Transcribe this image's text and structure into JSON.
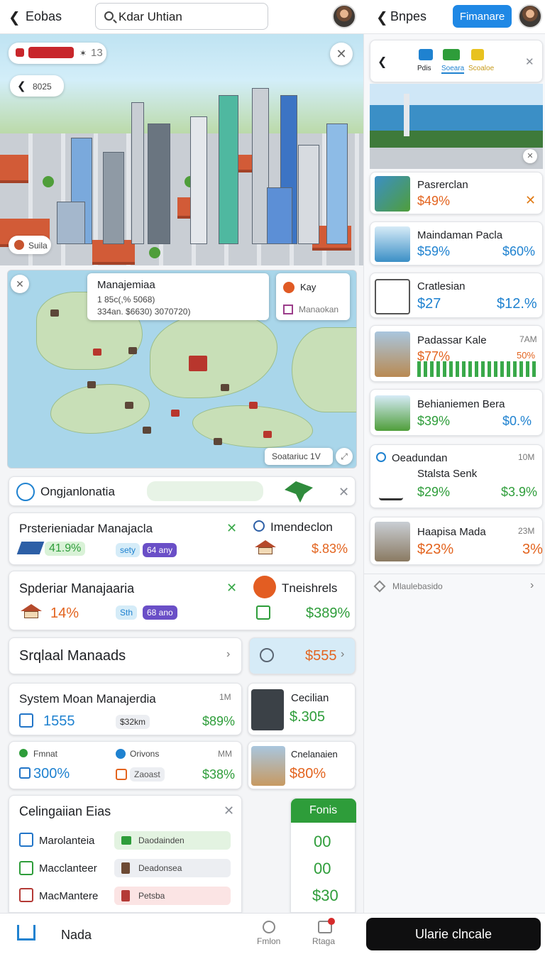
{
  "topbar": {
    "left_title": "Eobas",
    "search_value": "Kdar Uhtian",
    "right_title": "Bnpes",
    "primary_button": "Fimanare"
  },
  "city_map": {
    "badge_count": "13",
    "back_label": "8025",
    "scale_label": "Suila"
  },
  "region_map": {
    "popup_title": "Manajemiaa",
    "popup_line1": "1 85c(,% 5068)",
    "popup_line2": "334an. $6630) 3070720)",
    "key_title": "Kay",
    "key_sub": "Manaokan",
    "scale_button": "Soatariuc 1V"
  },
  "filter_row": {
    "label": "Ongjanlonatia"
  },
  "card1": {
    "title": "Prsterieniadar Manajacla",
    "value": "41.9%",
    "chip1": "sety",
    "chip2": "64 any",
    "right_title": "Imendeclon",
    "right_value": "$.83%"
  },
  "card2": {
    "title": "Spderiar Manajaaria",
    "value": "14%",
    "chip1": "Sth",
    "chip2": "68 ano",
    "right_title": "Tneishrels",
    "right_value": "$389%"
  },
  "card3": {
    "title": "Srqlaal Manaads",
    "right_value": "$555"
  },
  "card4": {
    "title": "System Moan Manajerdia",
    "badge": "1M",
    "value": "1555",
    "chip": "$32km",
    "right_value": "$89%",
    "side_title": "Cecilian",
    "side_value": "$.305"
  },
  "card5": {
    "left_label": "Fmnat",
    "left_value": "300%",
    "mid_label": "Orivons",
    "mid_chip": "Zaoast",
    "badge": "MM",
    "right_value": "$38%",
    "side_title": "Cnelanaien",
    "side_value": "$80%"
  },
  "card6": {
    "title": "Celingaiian Eias",
    "rows": [
      {
        "label": "Marolanteia",
        "tag": "Daodainden"
      },
      {
        "label": "Macclanteer",
        "tag": "Deadonsea"
      },
      {
        "label": "MacMantere",
        "tag": "Petsba"
      }
    ],
    "side_header": "Fonis",
    "side_values": [
      "00",
      "00",
      "$30"
    ]
  },
  "bottombar": {
    "home_label": "Nada",
    "nav1": "Fmlon",
    "nav2": "Rtaga",
    "action_button": "Ularie clncale"
  },
  "right_panel": {
    "tabs": [
      "Pdis",
      "Soeara",
      "Scoaloe"
    ],
    "items": [
      {
        "title": "Pasrerclan",
        "value1": "$49%"
      },
      {
        "title": "Maindaman Pacla",
        "value1": "$59%",
        "value2": "$60%"
      },
      {
        "title": "Cratlesian",
        "value1": "$27",
        "value2": "$12.%"
      },
      {
        "title": "Padassar Kale",
        "value1": "$77%",
        "value2": "50%",
        "badge": "7AM"
      },
      {
        "title": "Behianiemen Bera",
        "value1": "$39%",
        "value2": "$0.%"
      },
      {
        "title": "Oeadundan",
        "subtitle": "Stalsta Senk",
        "value1": "$29%",
        "value2": "$3.9%",
        "badge": "10M"
      },
      {
        "title": "Haapisa Mada",
        "value1": "$23%",
        "value2": "3%",
        "badge": "23M"
      }
    ],
    "footer_link": "Mlaulebasido"
  },
  "colors": {
    "accent": "#1f88e5",
    "green": "#2e9d3a",
    "orange": "#e3641f"
  }
}
